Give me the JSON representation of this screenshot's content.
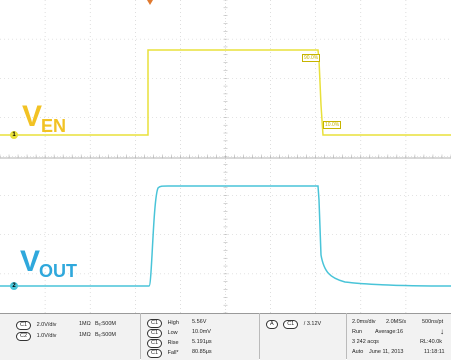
{
  "scope": {
    "labels": {
      "ven": {
        "main": "V",
        "sub": "EN"
      },
      "vout": {
        "main": "V",
        "sub": "OUT"
      }
    },
    "cursor_tags": {
      "tag1": "90.0%",
      "tag2": "10.0%"
    },
    "channel_markers": {
      "ch1": "1",
      "ch2": "2"
    },
    "colors": {
      "ch1": "#e8e03a",
      "ch2": "#49c4d8",
      "grid": "#c8c8c8"
    }
  },
  "panel": {
    "channels": [
      {
        "chip": "C1",
        "scale": "2.0V/div",
        "impedance": "1MΩ",
        "bw": "Bₑ:500M"
      },
      {
        "chip": "C2",
        "scale": "1.0V/div",
        "impedance": "1MΩ",
        "bw": "Bₑ:500M"
      }
    ],
    "measurements": [
      {
        "chip": "C1",
        "name": "High",
        "value": "5.56V"
      },
      {
        "chip": "C1",
        "name": "Low",
        "value": "10.0mV"
      },
      {
        "chip": "C1",
        "name": "Rise",
        "value": "5.191μs"
      },
      {
        "chip": "C1",
        "name": "Fall*",
        "value": "80.85μs"
      }
    ],
    "trigger": {
      "chip_a": "A",
      "chip_b": "C1",
      "slope": "/",
      "level": "3.12V"
    },
    "acquisition": {
      "timebase": "2.0ms/div",
      "sample_rate": "2.0MS/s",
      "resolution": "500ns/pt",
      "mode": "Run",
      "average": "Average:16",
      "acqs": "3 242 acqs",
      "record_length": "RL:40.0k",
      "trigger_mode": "Auto",
      "date": "June 11, 2013",
      "time": "11:18:11"
    }
  }
}
